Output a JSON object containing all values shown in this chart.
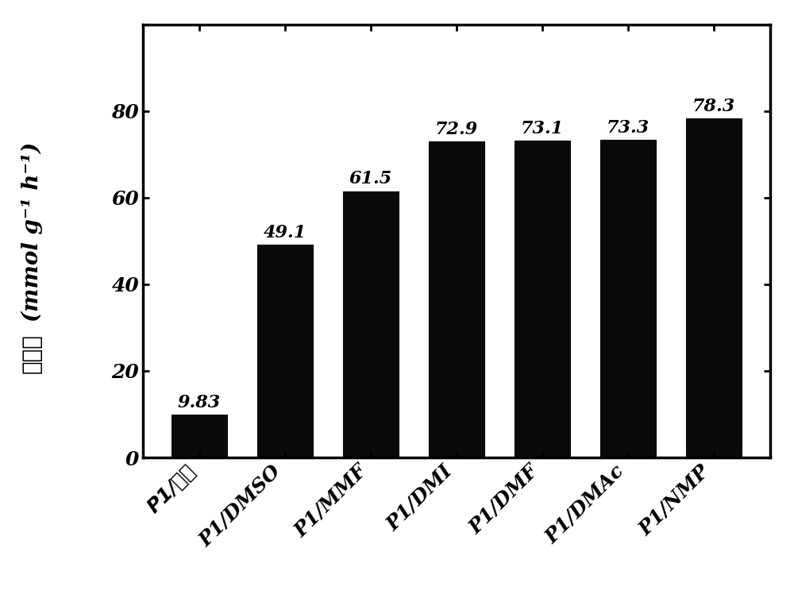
{
  "categories": [
    "P1/甲醇",
    "P1/DMSO",
    "P1/MMF",
    "P1/DMI",
    "P1/DMF",
    "P1/DMAc",
    "P1/NMP"
  ],
  "values": [
    9.83,
    49.1,
    61.5,
    72.9,
    73.1,
    73.3,
    78.3
  ],
  "bar_color": "#0a0a0a",
  "ylabel_chinese": "产氢率",
  "ylabel_english": "(mmol g⁻¹ h⁻¹)",
  "ylim": [
    0,
    100
  ],
  "yticks": [
    0,
    20,
    40,
    60,
    80
  ],
  "value_labels": [
    "9.83",
    "49.1",
    "61.5",
    "72.9",
    "73.1",
    "73.3",
    "78.3"
  ],
  "bar_width": 0.65,
  "tick_fontsize": 18,
  "ylabel_fontsize": 20,
  "value_label_fontsize": 16,
  "background_color": "#ffffff",
  "edge_color": "#0a0a0a"
}
